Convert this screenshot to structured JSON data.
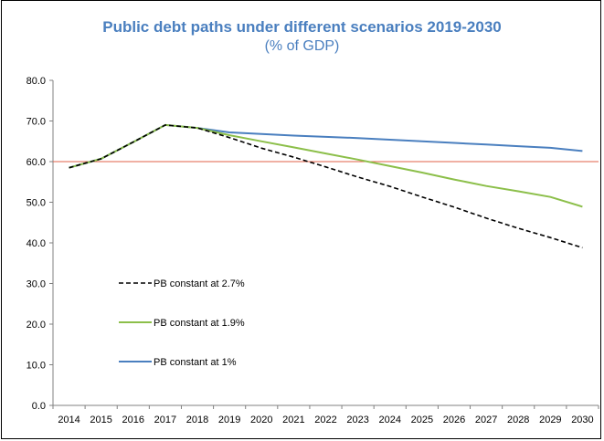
{
  "chart_data": {
    "type": "line",
    "title": "Public debt paths under different scenarios 2019-2030",
    "subtitle": "(% of GDP)",
    "xlabel": "",
    "ylabel": "",
    "ylim": [
      0,
      80
    ],
    "yticks": [
      "0.0",
      "10.0",
      "20.0",
      "30.0",
      "40.0",
      "50.0",
      "60.0",
      "70.0",
      "80.0"
    ],
    "categories": [
      "2014",
      "2015",
      "2016",
      "2017",
      "2018",
      "2019",
      "2020",
      "2021",
      "2022",
      "2023",
      "2024",
      "2025",
      "2026",
      "2027",
      "2028",
      "2029",
      "2030"
    ],
    "reference_line": {
      "value": 60,
      "color": "#e0604a"
    },
    "series": [
      {
        "name": "PB constant at 2.7%",
        "color": "#000000",
        "dash": true,
        "values": [
          58.5,
          60.7,
          64.8,
          69.0,
          68.3,
          65.9,
          63.3,
          61.1,
          58.7,
          56.2,
          53.9,
          51.3,
          48.8,
          46.1,
          43.6,
          41.3,
          38.8
        ]
      },
      {
        "name": "PB constant at 1.9%",
        "color": "#8cbf4a",
        "dash": false,
        "values": [
          58.5,
          60.7,
          64.8,
          69.0,
          68.3,
          66.5,
          65.0,
          63.5,
          62.0,
          60.5,
          58.9,
          57.3,
          55.6,
          54.0,
          52.7,
          51.3,
          48.9
        ]
      },
      {
        "name": "PB constant at 1%",
        "color": "#4a7fbf",
        "dash": false,
        "values": [
          58.5,
          60.7,
          64.8,
          69.0,
          68.3,
          67.2,
          66.8,
          66.4,
          66.1,
          65.8,
          65.4,
          65.0,
          64.6,
          64.2,
          63.8,
          63.4,
          62.6
        ]
      }
    ],
    "legend_position": "left"
  }
}
